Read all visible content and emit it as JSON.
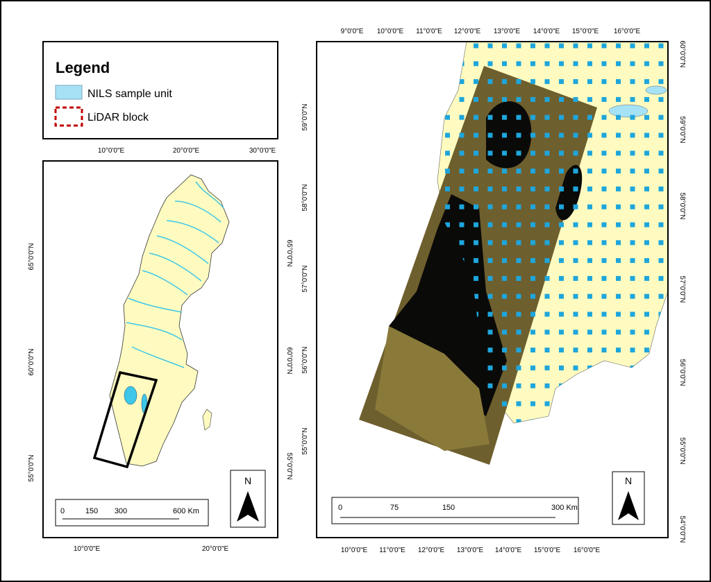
{
  "legend": {
    "title": "Legend",
    "items": [
      "NILS sample unit",
      "LiDAR block"
    ]
  },
  "overview_map": {
    "top_ticks": [
      "10°0'0\"E",
      "20°0'0\"E",
      "30°0'0\"E"
    ],
    "bottom_ticks": [
      "10°0'0\"E",
      "20°0'0\"E"
    ],
    "left_ticks": [
      "65°0'0\"N",
      "60°0'0\"N",
      "55°0'0\"N"
    ],
    "right_ticks": [
      "65°0'0\"N",
      "60°0'0\"N",
      "55°0'0\"N"
    ],
    "scale_labels": [
      "0",
      "150",
      "300",
      "600 Km"
    ],
    "north": "N"
  },
  "detail_map": {
    "top_ticks": [
      "9°0'0\"E",
      "10°0'0\"E",
      "11°0'0\"E",
      "12°0'0\"E",
      "13°0'0\"E",
      "14°0'0\"E",
      "15°0'0\"E",
      "16°0'0\"E"
    ],
    "bottom_ticks": [
      "10°0'0\"E",
      "11°0'0\"E",
      "12°0'0\"E",
      "13°0'0\"E",
      "14°0'0\"E",
      "15°0'0\"E",
      "16°0'0\"E"
    ],
    "left_ticks": [
      "59°0'0\"N",
      "58°0'0\"N",
      "57°0'0\"N",
      "56°0'0\"N",
      "55°0'0\"N"
    ],
    "right_ticks": [
      "60°0'0\"N",
      "59°0'0\"N",
      "58°0'0\"N",
      "57°0'0\"N",
      "56°0'0\"N",
      "55°0'0\"N",
      "54°0'0\"N"
    ],
    "scale_labels": [
      "0",
      "75",
      "150",
      "300 Km"
    ],
    "north": "N"
  }
}
